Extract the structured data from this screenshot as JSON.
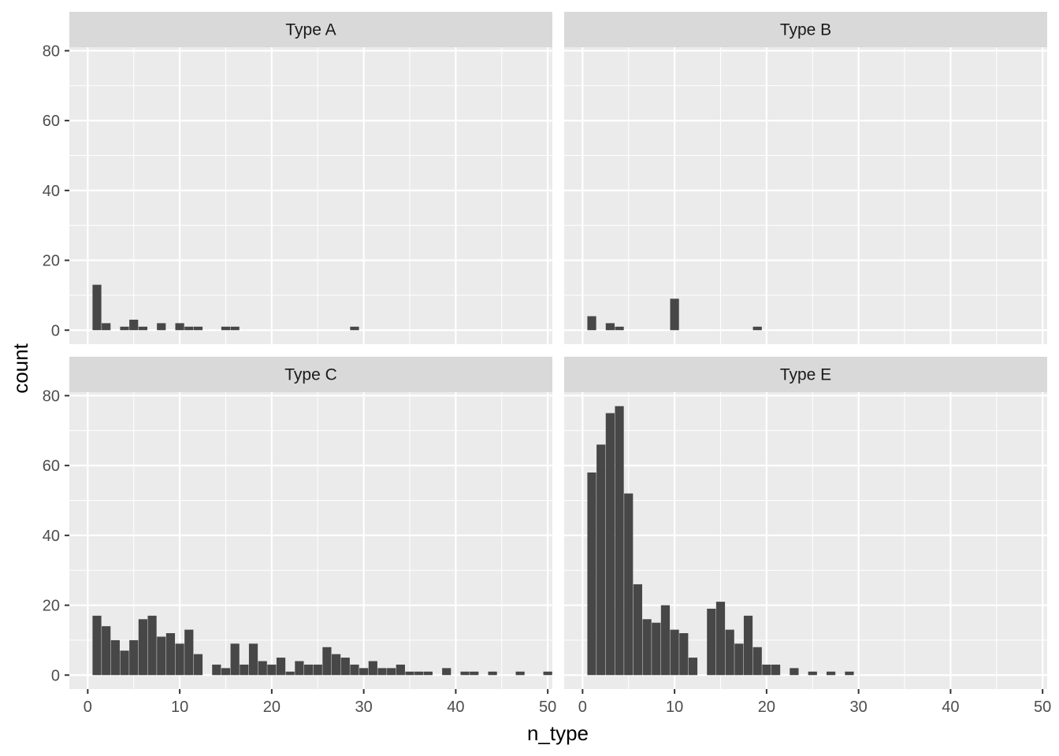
{
  "chart_data": {
    "type": "bar",
    "subtype": "faceted-histogram",
    "xlabel": "n_type",
    "ylabel": "count",
    "xlim": [
      -2,
      50.5
    ],
    "ylim": [
      -4,
      81
    ],
    "x_ticks": [
      0,
      10,
      20,
      30,
      40,
      50
    ],
    "y_ticks": [
      0,
      20,
      40,
      60,
      80
    ],
    "bin_width": 0.96,
    "grid": true,
    "colors": {
      "bar": "#474747",
      "panel": "#ebebeb",
      "strip": "#d9d9d9",
      "grid": "#ffffff"
    },
    "facets": [
      {
        "label": "Type A",
        "bins": [
          [
            1,
            13
          ],
          [
            2,
            2
          ],
          [
            4,
            1
          ],
          [
            5,
            3
          ],
          [
            6,
            1
          ],
          [
            8,
            2
          ],
          [
            10,
            2
          ],
          [
            11,
            1
          ],
          [
            12,
            1
          ],
          [
            15,
            1
          ],
          [
            16,
            1
          ],
          [
            29,
            1
          ]
        ]
      },
      {
        "label": "Type B",
        "bins": [
          [
            1,
            4
          ],
          [
            3,
            2
          ],
          [
            4,
            1
          ],
          [
            10,
            9
          ],
          [
            19,
            1
          ]
        ]
      },
      {
        "label": "Type C",
        "bins": [
          [
            1,
            17
          ],
          [
            2,
            14
          ],
          [
            3,
            10
          ],
          [
            4,
            7
          ],
          [
            5,
            10
          ],
          [
            6,
            16
          ],
          [
            7,
            17
          ],
          [
            8,
            11
          ],
          [
            9,
            12
          ],
          [
            10,
            9
          ],
          [
            11,
            13
          ],
          [
            12,
            6
          ],
          [
            14,
            3
          ],
          [
            15,
            2
          ],
          [
            16,
            9
          ],
          [
            17,
            3
          ],
          [
            18,
            9
          ],
          [
            19,
            4
          ],
          [
            20,
            3
          ],
          [
            21,
            5
          ],
          [
            22,
            1
          ],
          [
            23,
            4
          ],
          [
            24,
            3
          ],
          [
            25,
            3
          ],
          [
            26,
            8
          ],
          [
            27,
            6
          ],
          [
            28,
            5
          ],
          [
            29,
            3
          ],
          [
            30,
            2
          ],
          [
            31,
            4
          ],
          [
            32,
            2
          ],
          [
            33,
            2
          ],
          [
            34,
            3
          ],
          [
            35,
            1
          ],
          [
            36,
            1
          ],
          [
            37,
            1
          ],
          [
            39,
            2
          ],
          [
            41,
            1
          ],
          [
            42,
            1
          ],
          [
            44,
            1
          ],
          [
            47,
            1
          ],
          [
            50,
            1
          ]
        ]
      },
      {
        "label": "Type E",
        "bins": [
          [
            1,
            58
          ],
          [
            2,
            66
          ],
          [
            3,
            75
          ],
          [
            4,
            77
          ],
          [
            5,
            52
          ],
          [
            6,
            26
          ],
          [
            7,
            16
          ],
          [
            8,
            15
          ],
          [
            9,
            20
          ],
          [
            10,
            13
          ],
          [
            11,
            12
          ],
          [
            12,
            5
          ],
          [
            14,
            19
          ],
          [
            15,
            21
          ],
          [
            16,
            13
          ],
          [
            17,
            9
          ],
          [
            18,
            17
          ],
          [
            19,
            8
          ],
          [
            20,
            3
          ],
          [
            21,
            3
          ],
          [
            23,
            2
          ],
          [
            25,
            1
          ],
          [
            27,
            1
          ],
          [
            29,
            1
          ]
        ]
      }
    ]
  }
}
